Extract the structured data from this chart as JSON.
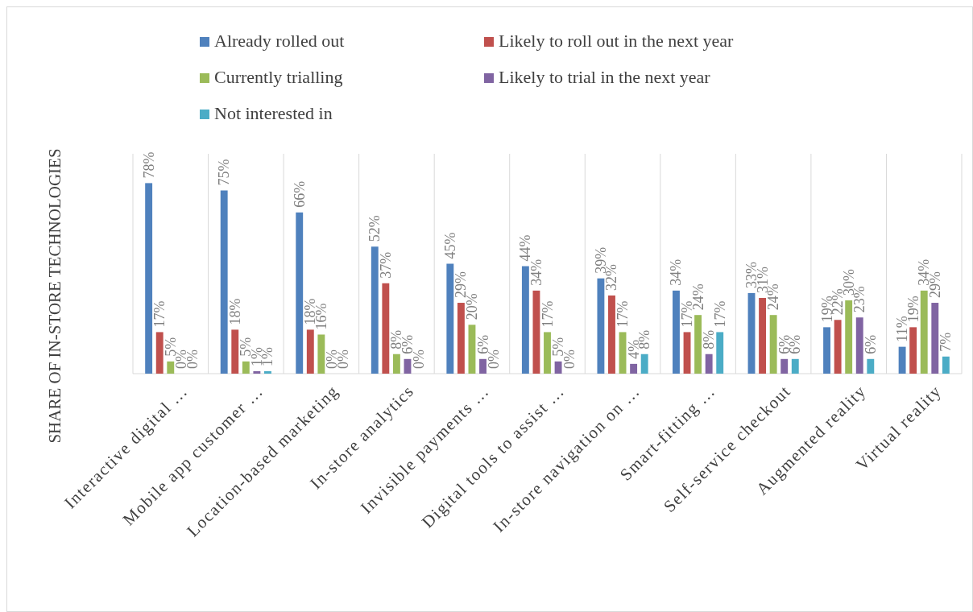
{
  "chart_data": {
    "type": "bar",
    "ylabel": "SHARE OF IN-STORE TECHNOLOGIES",
    "categories": [
      "Interactive digital …",
      "Mobile app customer …",
      "Location-based marketing",
      "In-store analytics",
      "Invisible payments …",
      "Digital tools to assist …",
      "In-store navigation on …",
      "Smart-fitting …",
      "Self-service checkout",
      "Augmented reality",
      "Virtual reality"
    ],
    "series": [
      {
        "name": "Already rolled out",
        "color": "#4f81bd",
        "values": [
          78,
          75,
          66,
          52,
          45,
          44,
          39,
          34,
          33,
          19,
          11
        ],
        "value_labels": [
          "78%",
          "75%",
          "66%",
          "52%",
          "45%",
          "44%",
          "39%",
          "34%",
          "33%",
          "19%",
          "11%"
        ]
      },
      {
        "name": "Likely to roll out in the next year",
        "color": "#c0504d",
        "values": [
          17,
          18,
          18,
          37,
          29,
          34,
          32,
          17,
          31,
          22,
          19
        ],
        "value_labels": [
          "17%",
          "18%",
          "18%",
          "37%",
          "29%",
          "34%",
          "32%",
          "17%",
          "31%",
          "22%",
          "19%"
        ]
      },
      {
        "name": "Currently trialling",
        "color": "#9bbb59",
        "values": [
          5,
          5,
          16,
          8,
          20,
          17,
          17,
          24,
          24,
          30,
          34
        ],
        "value_labels": [
          "5%",
          "5%",
          "16%",
          "8%",
          "20%",
          "17%",
          "17%",
          "24%",
          "24%",
          "30%",
          "34%"
        ]
      },
      {
        "name": "Likely to trial in the next year",
        "color": "#8064a2",
        "values": [
          0,
          1,
          0,
          6,
          6,
          5,
          4,
          8,
          6,
          23,
          29
        ],
        "value_labels": [
          "0%",
          "1%",
          "0%",
          "6%",
          "6%",
          "5%",
          "4%",
          "8%",
          "6%",
          "23%",
          "29%"
        ]
      },
      {
        "name": "Not interested in",
        "color": "#4bacc6",
        "values": [
          0,
          1,
          0,
          0,
          0,
          0,
          8,
          17,
          6,
          6,
          7
        ],
        "value_labels": [
          "0%",
          "1%",
          "0%",
          "0%",
          "0%",
          "0%",
          "8%",
          "17%",
          "6%",
          "6%",
          "7%"
        ]
      }
    ],
    "ylim": [
      0,
      90
    ],
    "tick_labels": "x",
    "grid": "x",
    "legend": "top"
  }
}
